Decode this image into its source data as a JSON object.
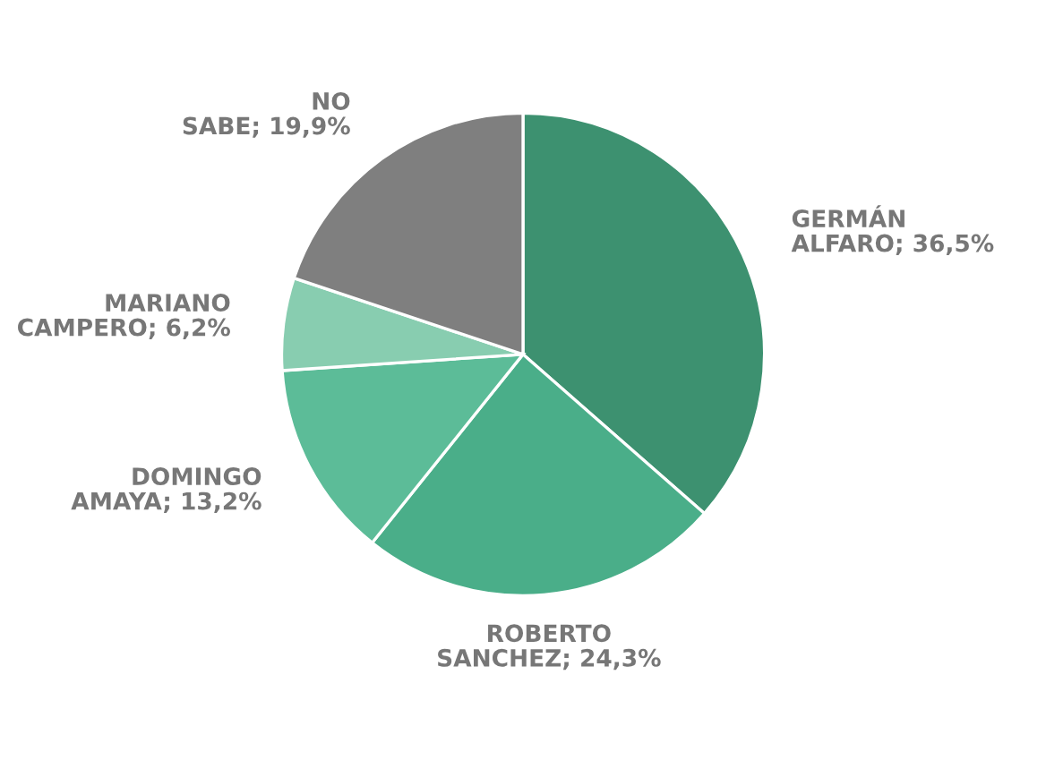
{
  "chart_data": {
    "type": "pie",
    "categories": [
      "GERMÁN ALFARO",
      "ROBERTO SANCHEZ",
      "DOMINGO AMAYA",
      "MARIANO CAMPERO",
      "NO SABE"
    ],
    "values": [
      36.5,
      24.3,
      13.2,
      6.2,
      19.9
    ],
    "value_labels": [
      "36,5%",
      "24,3%",
      "13,2%",
      "6,2%",
      "19,9%"
    ],
    "colors": [
      "#3d9170",
      "#4aae89",
      "#5cbc98",
      "#88cdb0",
      "#7f7f7f"
    ],
    "legend": false
  }
}
